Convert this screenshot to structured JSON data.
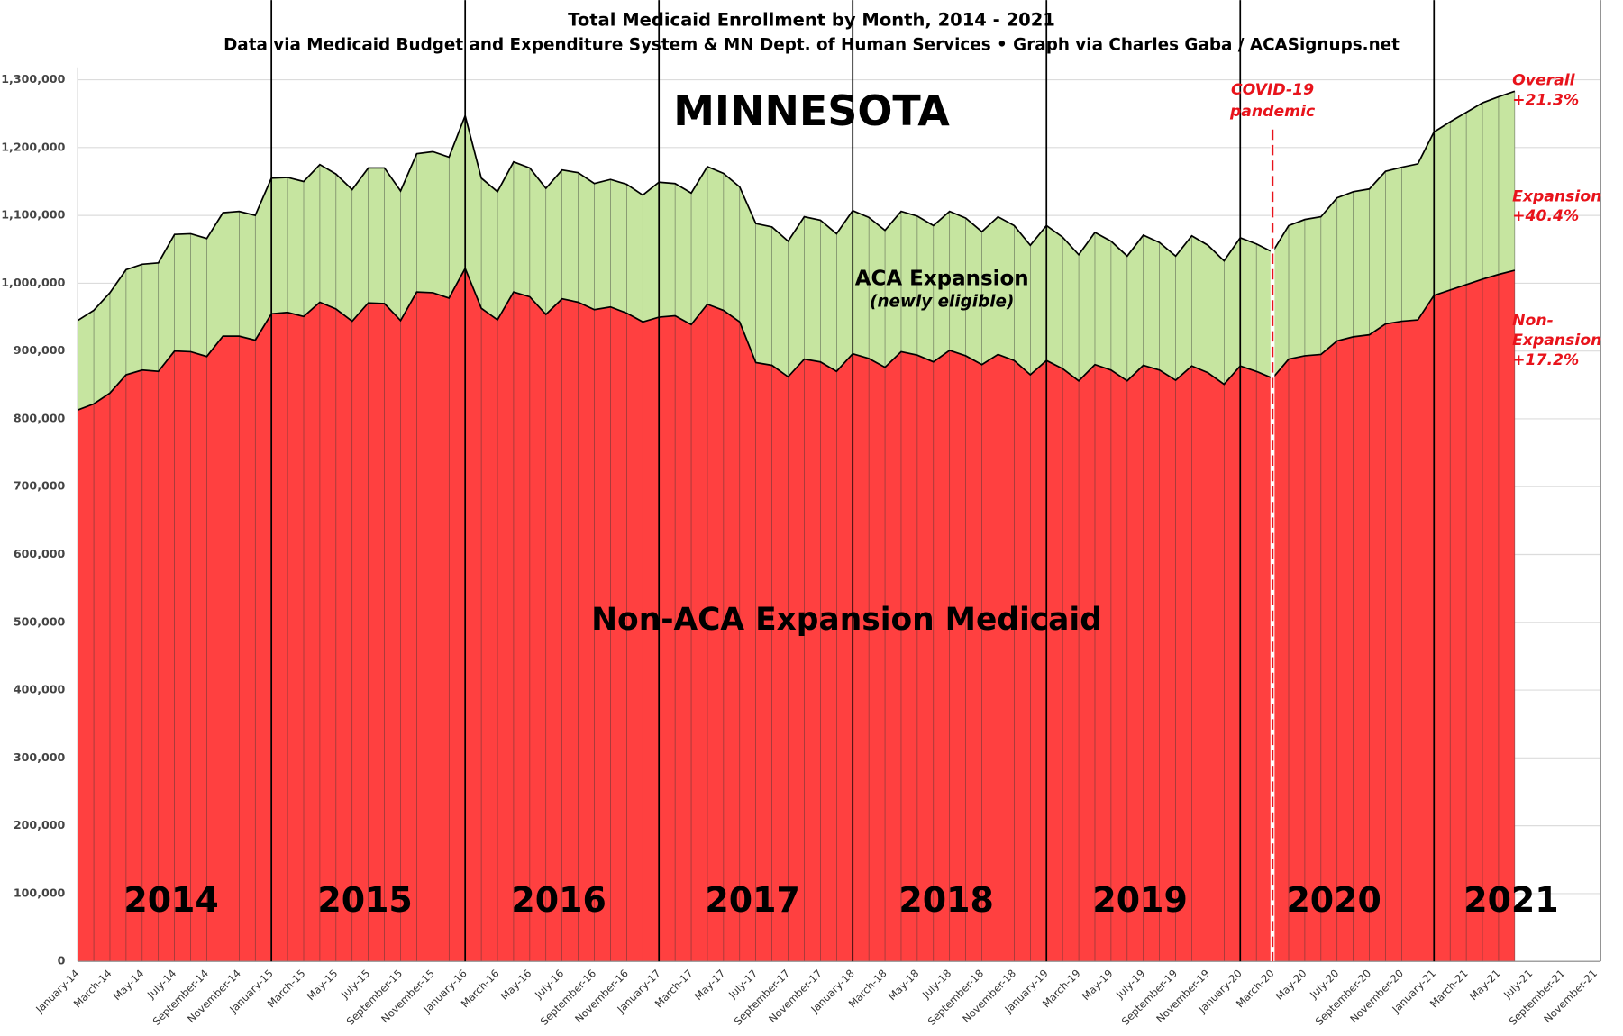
{
  "chart_data": {
    "type": "stacked-area",
    "title": "Total Medicaid Enrollment by Month, 2014 - 2021",
    "subtitle": "Data via Medicaid Budget and Expenditure System & MN Dept. of Human Services  •  Graph via Charles Gaba / ACASignups.net",
    "heading": "MINNESOTA",
    "area_note": "(newly eligible)",
    "year_labels": [
      "2014",
      "2015",
      "2016",
      "2017",
      "2018",
      "2019",
      "2020",
      "2021"
    ],
    "event_label": [
      "COVID-19",
      "pandemic"
    ],
    "side_notes": [
      [
        "Overall",
        "+21.3%"
      ],
      [
        "Expansion",
        "+40.4%"
      ],
      [
        "Non-",
        "Expansion",
        "+17.2%"
      ]
    ],
    "categories": [
      "January-14",
      null,
      "March-14",
      null,
      "May-14",
      null,
      "July-14",
      null,
      "September-14",
      null,
      "November-14",
      null,
      "January-15",
      null,
      "March-15",
      null,
      "May-15",
      null,
      "July-15",
      null,
      "September-15",
      null,
      "November-15",
      null,
      "January-16",
      null,
      "March-16",
      null,
      "May-16",
      null,
      "July-16",
      null,
      "September-16",
      null,
      "November-16",
      null,
      "January-17",
      null,
      "March-17",
      null,
      "May-17",
      null,
      "July-17",
      null,
      "September-17",
      null,
      "November-17",
      null,
      "January-18",
      null,
      "March-18",
      null,
      "May-18",
      null,
      "July-18",
      null,
      "September-18",
      null,
      "November-18",
      null,
      "January-19",
      null,
      "March-19",
      null,
      "May-19",
      null,
      "July-19",
      null,
      "September-19",
      null,
      "November-19",
      null,
      "January-20",
      null,
      "March-20",
      null,
      "May-20",
      null,
      "July-20",
      null,
      "September-20",
      null,
      "November-20",
      null,
      "January-21",
      null,
      "March-21",
      null,
      "May-21",
      null,
      "July-21",
      null,
      "September-21",
      null,
      "November-21",
      null
    ],
    "series": [
      {
        "name": "Non-ACA Expansion Medicaid",
        "color": "#ff4040",
        "values": [
          813000,
          822000,
          838000,
          865000,
          872000,
          870000,
          900000,
          899000,
          892000,
          922000,
          922000,
          916000,
          955000,
          957000,
          951000,
          972000,
          962000,
          944000,
          971000,
          970000,
          945000,
          987000,
          986000,
          978000,
          1022000,
          963000,
          946000,
          987000,
          980000,
          954000,
          977000,
          972000,
          961000,
          965000,
          956000,
          943000,
          950000,
          952000,
          939000,
          969000,
          960000,
          943000,
          883000,
          879000,
          862000,
          888000,
          884000,
          870000,
          896000,
          889000,
          876000,
          899000,
          894000,
          884000,
          901000,
          893000,
          880000,
          895000,
          886000,
          865000,
          886000,
          874000,
          856000,
          880000,
          872000,
          856000,
          879000,
          872000,
          857000,
          878000,
          868000,
          851000,
          878000,
          870000,
          860000,
          888000,
          893000,
          895000,
          915000,
          921000,
          924000,
          940000,
          944000,
          946000,
          982000,
          990000,
          998000,
          1006000,
          1013000,
          1019000,
          null,
          null,
          null,
          null,
          null,
          null
        ]
      },
      {
        "name": "ACA Expansion",
        "color": "#c6e5a0",
        "values": [
          132000,
          138000,
          148000,
          155000,
          156000,
          160000,
          172000,
          174000,
          174000,
          182000,
          184000,
          184000,
          200000,
          199000,
          199000,
          203000,
          199000,
          194000,
          199000,
          200000,
          191000,
          204000,
          208000,
          208000,
          225000,
          192000,
          189000,
          192000,
          190000,
          186000,
          190000,
          191000,
          186000,
          188000,
          190000,
          187000,
          199000,
          195000,
          194000,
          203000,
          202000,
          199000,
          205000,
          204000,
          200000,
          210000,
          209000,
          203000,
          211000,
          208000,
          202000,
          207000,
          205000,
          201000,
          205000,
          203000,
          196000,
          203000,
          199000,
          191000,
          199000,
          194000,
          186000,
          195000,
          190000,
          184000,
          192000,
          188000,
          183000,
          192000,
          188000,
          182000,
          189000,
          188000,
          186000,
          197000,
          201000,
          203000,
          211000,
          214000,
          215000,
          225000,
          227000,
          230000,
          241000,
          248000,
          254000,
          260000,
          262000,
          264000,
          null,
          null,
          null,
          null,
          null,
          null
        ]
      }
    ],
    "ylim": [
      0,
      1300000
    ],
    "yticks": [
      0,
      {
        "value": 100000,
        "label": "100,000"
      },
      {
        "value": 200000,
        "label": "200,000"
      },
      {
        "value": 300000,
        "label": "300,000"
      },
      {
        "value": 400000,
        "label": "400,000"
      },
      {
        "value": 500000,
        "label": "500,000"
      },
      {
        "value": 600000,
        "label": "600,000"
      },
      {
        "value": 700000,
        "label": "700,000"
      },
      {
        "value": 800000,
        "label": "800,000"
      },
      {
        "value": 900000,
        "label": "900,000"
      },
      {
        "value": 1000000,
        "label": "1,000,000"
      },
      {
        "value": 1100000,
        "label": "1,100,000"
      },
      {
        "value": 1200000,
        "label": "1,200,000"
      },
      {
        "value": 1300000,
        "label": "1,300,000"
      }
    ],
    "grid": true,
    "event_color": "#e8131b"
  }
}
